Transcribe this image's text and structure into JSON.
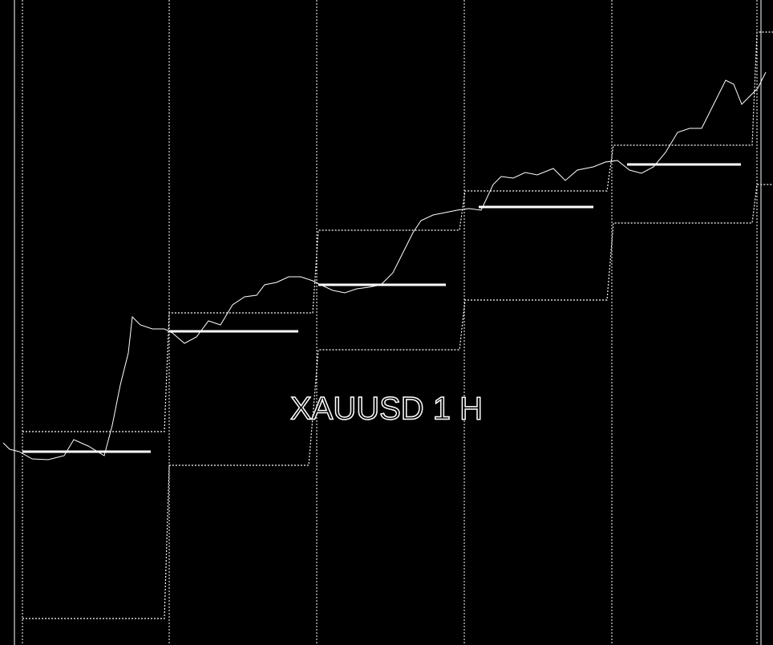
{
  "watermark": "XAUUSD 1 H"
}
